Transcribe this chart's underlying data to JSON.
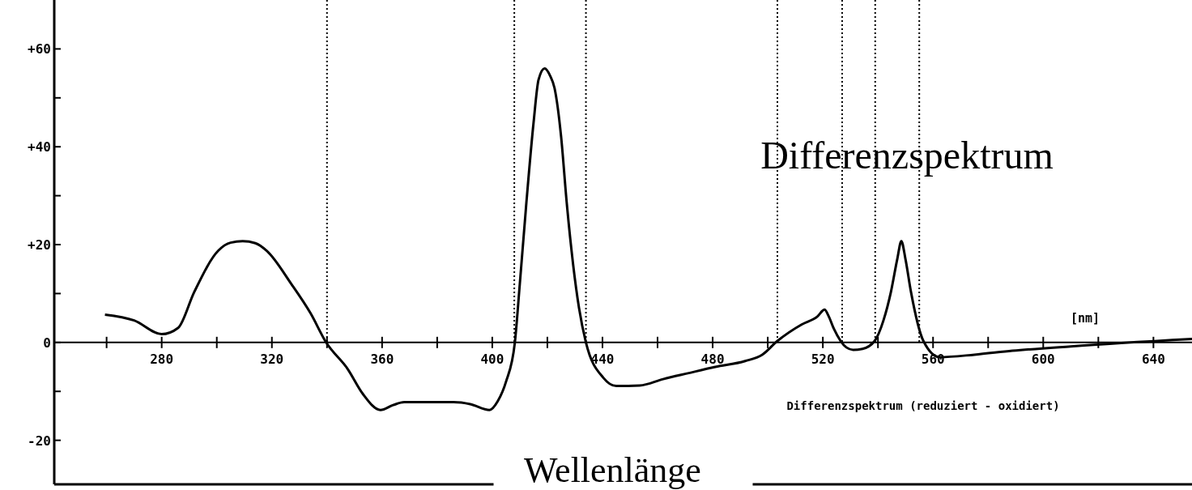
{
  "chart_data": {
    "type": "line",
    "xlabel": "Wellenlänge",
    "annotations": [
      "Differenzspektrum",
      "Differenzspektrum (reduziert - oxidiert)",
      "[nm]"
    ],
    "xlim": [
      241,
      654
    ],
    "ylim": [
      -29,
      70
    ],
    "xticks": [
      {
        "value": 260,
        "label": null
      },
      280,
      {
        "value": 300,
        "label": null
      },
      320,
      {
        "value": 340,
        "label": null
      },
      360,
      {
        "value": 380,
        "label": null
      },
      400,
      {
        "value": 420,
        "label": null
      },
      440,
      {
        "value": 460,
        "label": null
      },
      480,
      {
        "value": 500,
        "label": null
      },
      520,
      {
        "value": 540,
        "label": null
      },
      560,
      {
        "value": 580,
        "label": null
      },
      600,
      {
        "value": 620,
        "label": null
      },
      640
    ],
    "yticks": [
      -20,
      {
        "value": -10,
        "label": null
      },
      0,
      {
        "value": 10,
        "label": null
      },
      {
        "value": 20,
        "label": "+20"
      },
      {
        "value": 30,
        "label": null
      },
      {
        "value": 40,
        "label": "+40"
      },
      {
        "value": 50,
        "label": null
      },
      {
        "value": 60,
        "label": "+60"
      }
    ],
    "grid": false,
    "marker": "none",
    "line_style": "solid",
    "ref_lines": [
      {
        "axis": "x",
        "value": 340,
        "line_style": "dotted",
        "color": "#000000"
      },
      {
        "axis": "x",
        "value": 408,
        "line_style": "dotted",
        "color": "#000000"
      },
      {
        "axis": "x",
        "value": 434,
        "line_style": "dotted",
        "color": "#000000"
      },
      {
        "axis": "x",
        "value": 503.5,
        "line_style": "dotted",
        "color": "#000000"
      },
      {
        "axis": "x",
        "value": 527,
        "line_style": "dotted",
        "color": "#000000"
      },
      {
        "axis": "x",
        "value": 539,
        "line_style": "dotted",
        "color": "#000000"
      },
      {
        "axis": "x",
        "value": 555,
        "line_style": "dotted",
        "color": "#000000"
      }
    ],
    "series": [
      {
        "color": "#000000",
        "x": [
          259.4,
          270,
          280,
          286,
          291.8,
          300.6,
          305,
          309.4,
          314,
          318.2,
          327,
          334,
          339.7,
          347.6,
          353,
          359.4,
          364,
          368,
          377,
          386,
          392,
          399,
          402,
          405,
          408.2,
          410,
          412.4,
          415,
          416.8,
          419,
          421,
          422.6,
          425,
          427,
          431.5,
          434,
          440.3,
          445,
          453.5,
          462,
          471,
          481,
          491.8,
          498,
          503.5,
          512.4,
          518,
          520.6,
          522,
          524,
          528.5,
          531,
          534.4,
          538.8,
          542,
          544.7,
          547,
          548.5,
          550,
          552,
          556.5,
          562.4,
          575,
          588.8,
          610,
          654
        ],
        "values": [
          5.7,
          4.5,
          1.7,
          3,
          10.3,
          18.8,
          20.4,
          20.7,
          20.3,
          18.7,
          12,
          6,
          0,
          -5.5,
          -10.5,
          -13.8,
          -12.8,
          -12.2,
          -12.2,
          -12.2,
          -12.6,
          -13.8,
          -12,
          -8,
          0,
          12,
          28.7,
          45,
          53.7,
          56,
          54.5,
          52,
          42,
          28.7,
          7,
          0,
          -7.2,
          -8.9,
          -8.8,
          -7.5,
          -6.3,
          -5,
          -3.8,
          -2.5,
          0.3,
          3.7,
          5.3,
          6.7,
          5.5,
          2.8,
          -1,
          -1.5,
          -1.3,
          0.3,
          4.5,
          10.3,
          17,
          20.7,
          17,
          10.3,
          0.3,
          -3,
          -2.5,
          -1.7,
          -0.8,
          0.7
        ]
      }
    ]
  }
}
